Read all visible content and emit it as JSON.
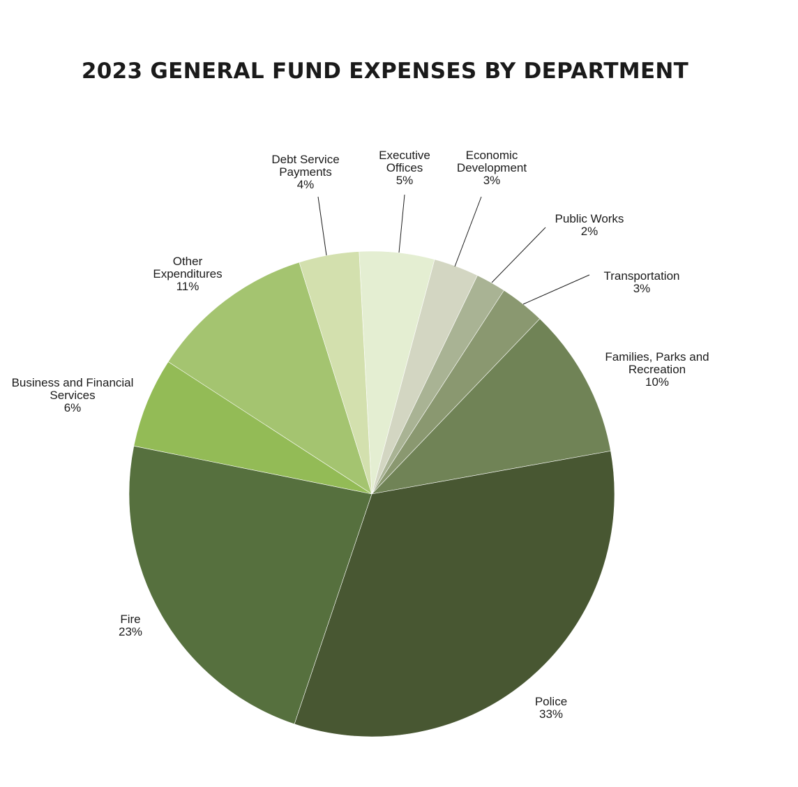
{
  "chart_data": {
    "type": "pie",
    "title": "2023 GENERAL FUND EXPENSES BY DEPARTMENT",
    "start_angle_deg": -3,
    "direction": "clockwise",
    "slices": [
      {
        "label_lines": [
          "Executive",
          "Offices"
        ],
        "label": "Executive Offices",
        "value": 5,
        "pct_label": "5%",
        "color": "#e4eed2"
      },
      {
        "label_lines": [
          "Economic",
          "Development"
        ],
        "label": "Economic Development",
        "value": 3,
        "pct_label": "3%",
        "color": "#d3d6c2"
      },
      {
        "label_lines": [
          "Public Works"
        ],
        "label": "Public Works",
        "value": 2,
        "pct_label": "2%",
        "color": "#a9b394"
      },
      {
        "label_lines": [
          "Transportation"
        ],
        "label": "Transportation",
        "value": 3,
        "pct_label": "3%",
        "color": "#8a9870"
      },
      {
        "label_lines": [
          "Families, Parks and",
          "Recreation"
        ],
        "label": "Families, Parks and Recreation",
        "value": 10,
        "pct_label": "10%",
        "color": "#708356"
      },
      {
        "label_lines": [
          "Police"
        ],
        "label": "Police",
        "value": 33,
        "pct_label": "33%",
        "color": "#485732"
      },
      {
        "label_lines": [
          "Fire"
        ],
        "label": "Fire",
        "value": 23,
        "pct_label": "23%",
        "color": "#56703e"
      },
      {
        "label_lines": [
          "Business and Financial",
          "Services"
        ],
        "label": "Business and Financial Services",
        "value": 6,
        "pct_label": "6%",
        "color": "#93bb56"
      },
      {
        "label_lines": [
          "Other",
          "Expenditures"
        ],
        "label": "Other Expenditures",
        "value": 11,
        "pct_label": "11%",
        "color": "#a4c470"
      },
      {
        "label_lines": [
          "Debt Service",
          "Payments"
        ],
        "label": "Debt Service Payments",
        "value": 4,
        "pct_label": "4%",
        "color": "#d3e0ae"
      }
    ]
  }
}
